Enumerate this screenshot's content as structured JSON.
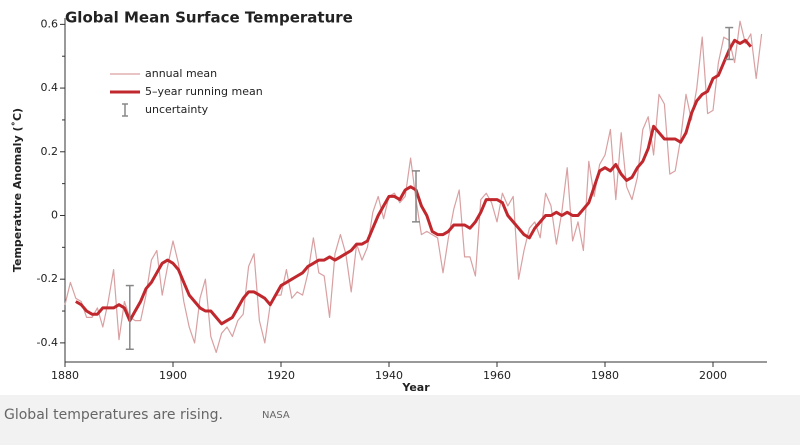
{
  "chart_data": {
    "type": "line",
    "title": "Global Mean Surface Temperature",
    "x_label": "Year",
    "y_label": "Temperature Anomaly (˚C)",
    "x": [
      1880,
      1881,
      1882,
      1883,
      1884,
      1885,
      1886,
      1887,
      1888,
      1889,
      1890,
      1891,
      1892,
      1893,
      1894,
      1895,
      1896,
      1897,
      1898,
      1899,
      1900,
      1901,
      1902,
      1903,
      1904,
      1905,
      1906,
      1907,
      1908,
      1909,
      1910,
      1911,
      1912,
      1913,
      1914,
      1915,
      1916,
      1917,
      1918,
      1919,
      1920,
      1921,
      1922,
      1923,
      1924,
      1925,
      1926,
      1927,
      1928,
      1929,
      1930,
      1931,
      1932,
      1933,
      1934,
      1935,
      1936,
      1937,
      1938,
      1939,
      1940,
      1941,
      1942,
      1943,
      1944,
      1945,
      1946,
      1947,
      1948,
      1949,
      1950,
      1951,
      1952,
      1953,
      1954,
      1955,
      1956,
      1957,
      1958,
      1959,
      1960,
      1961,
      1962,
      1963,
      1964,
      1965,
      1966,
      1967,
      1968,
      1969,
      1970,
      1971,
      1972,
      1973,
      1974,
      1975,
      1976,
      1977,
      1978,
      1979,
      1980,
      1981,
      1982,
      1983,
      1984,
      1985,
      1986,
      1987,
      1988,
      1989,
      1990,
      1991,
      1992,
      1993,
      1994,
      1995,
      1996,
      1997,
      1998,
      1999,
      2000,
      2001,
      2002,
      2003,
      2004,
      2005,
      2006,
      2007,
      2008,
      2009
    ],
    "series": [
      {
        "name": "annual mean",
        "color": "#d9a0a2",
        "width": 1.2,
        "values": [
          -0.28,
          -0.21,
          -0.26,
          -0.27,
          -0.32,
          -0.32,
          -0.29,
          -0.35,
          -0.27,
          -0.17,
          -0.39,
          -0.27,
          -0.32,
          -0.33,
          -0.33,
          -0.25,
          -0.14,
          -0.11,
          -0.25,
          -0.16,
          -0.08,
          -0.15,
          -0.27,
          -0.35,
          -0.4,
          -0.26,
          -0.2,
          -0.38,
          -0.43,
          -0.37,
          -0.35,
          -0.38,
          -0.33,
          -0.31,
          -0.16,
          -0.12,
          -0.33,
          -0.4,
          -0.28,
          -0.25,
          -0.25,
          -0.17,
          -0.26,
          -0.24,
          -0.25,
          -0.18,
          -0.07,
          -0.18,
          -0.19,
          -0.32,
          -0.12,
          -0.06,
          -0.12,
          -0.24,
          -0.09,
          -0.14,
          -0.1,
          0.01,
          0.06,
          -0.01,
          0.06,
          0.07,
          0.04,
          0.06,
          0.18,
          0.05,
          -0.06,
          -0.05,
          -0.06,
          -0.07,
          -0.18,
          -0.07,
          0.02,
          0.08,
          -0.13,
          -0.13,
          -0.19,
          0.05,
          0.07,
          0.04,
          -0.02,
          0.07,
          0.03,
          0.06,
          -0.2,
          -0.11,
          -0.04,
          -0.02,
          -0.07,
          0.07,
          0.03,
          -0.09,
          0.01,
          0.15,
          -0.08,
          -0.02,
          -0.11,
          0.17,
          0.06,
          0.16,
          0.19,
          0.27,
          0.05,
          0.26,
          0.09,
          0.05,
          0.12,
          0.27,
          0.31,
          0.19,
          0.38,
          0.35,
          0.13,
          0.14,
          0.24,
          0.38,
          0.3,
          0.4,
          0.56,
          0.32,
          0.33,
          0.48,
          0.56,
          0.55,
          0.48,
          0.61,
          0.54,
          0.57,
          0.43,
          0.57
        ]
      },
      {
        "name": "5–year running mean",
        "color": "#c0282d",
        "width": 3,
        "values": [
          null,
          null,
          -0.27,
          -0.28,
          -0.3,
          -0.31,
          -0.31,
          -0.29,
          -0.29,
          -0.29,
          -0.28,
          -0.29,
          -0.33,
          -0.3,
          -0.27,
          -0.23,
          -0.21,
          -0.18,
          -0.15,
          -0.14,
          -0.15,
          -0.17,
          -0.21,
          -0.25,
          -0.27,
          -0.29,
          -0.3,
          -0.3,
          -0.32,
          -0.34,
          -0.33,
          -0.32,
          -0.29,
          -0.26,
          -0.24,
          -0.24,
          -0.25,
          -0.26,
          -0.28,
          -0.25,
          -0.22,
          -0.21,
          -0.2,
          -0.19,
          -0.18,
          -0.16,
          -0.15,
          -0.14,
          -0.14,
          -0.13,
          -0.14,
          -0.13,
          -0.12,
          -0.11,
          -0.09,
          -0.09,
          -0.08,
          -0.04,
          0.0,
          0.03,
          0.06,
          0.06,
          0.05,
          0.08,
          0.09,
          0.08,
          0.03,
          0.0,
          -0.05,
          -0.06,
          -0.06,
          -0.05,
          -0.03,
          -0.03,
          -0.03,
          -0.04,
          -0.02,
          0.01,
          0.05,
          0.05,
          0.05,
          0.04,
          0.0,
          -0.02,
          -0.04,
          -0.06,
          -0.07,
          -0.04,
          -0.02,
          0.0,
          0.0,
          0.01,
          0.0,
          0.01,
          0.0,
          0.0,
          0.02,
          0.04,
          0.09,
          0.14,
          0.15,
          0.14,
          0.16,
          0.13,
          0.11,
          0.12,
          0.15,
          0.17,
          0.21,
          0.28,
          0.26,
          0.24,
          0.24,
          0.24,
          0.23,
          0.26,
          0.32,
          0.36,
          0.38,
          0.39,
          0.43,
          0.44,
          0.48,
          0.52,
          0.55,
          0.54,
          0.55,
          0.53,
          null,
          null
        ]
      }
    ],
    "uncertainty": {
      "name": "uncertainty",
      "color": "#888888",
      "x": [
        1892,
        1945,
        2003
      ],
      "values": [
        -0.32,
        0.06,
        0.54
      ],
      "errors": [
        0.1,
        0.08,
        0.05
      ]
    },
    "xlim": [
      1880,
      2010
    ],
    "xticks": [
      1880,
      1900,
      1920,
      1940,
      1960,
      1980,
      2000
    ],
    "ylim": [
      -0.46,
      0.62
    ],
    "yticks": [
      -0.4,
      -0.2,
      0,
      0.2,
      0.4,
      0.6
    ],
    "yminor": [
      -0.3,
      -0.1,
      0.1,
      0.3,
      0.5
    ],
    "legend": "upper left"
  },
  "caption": {
    "text": "Global temperatures are rising.",
    "credit": "NASA"
  }
}
